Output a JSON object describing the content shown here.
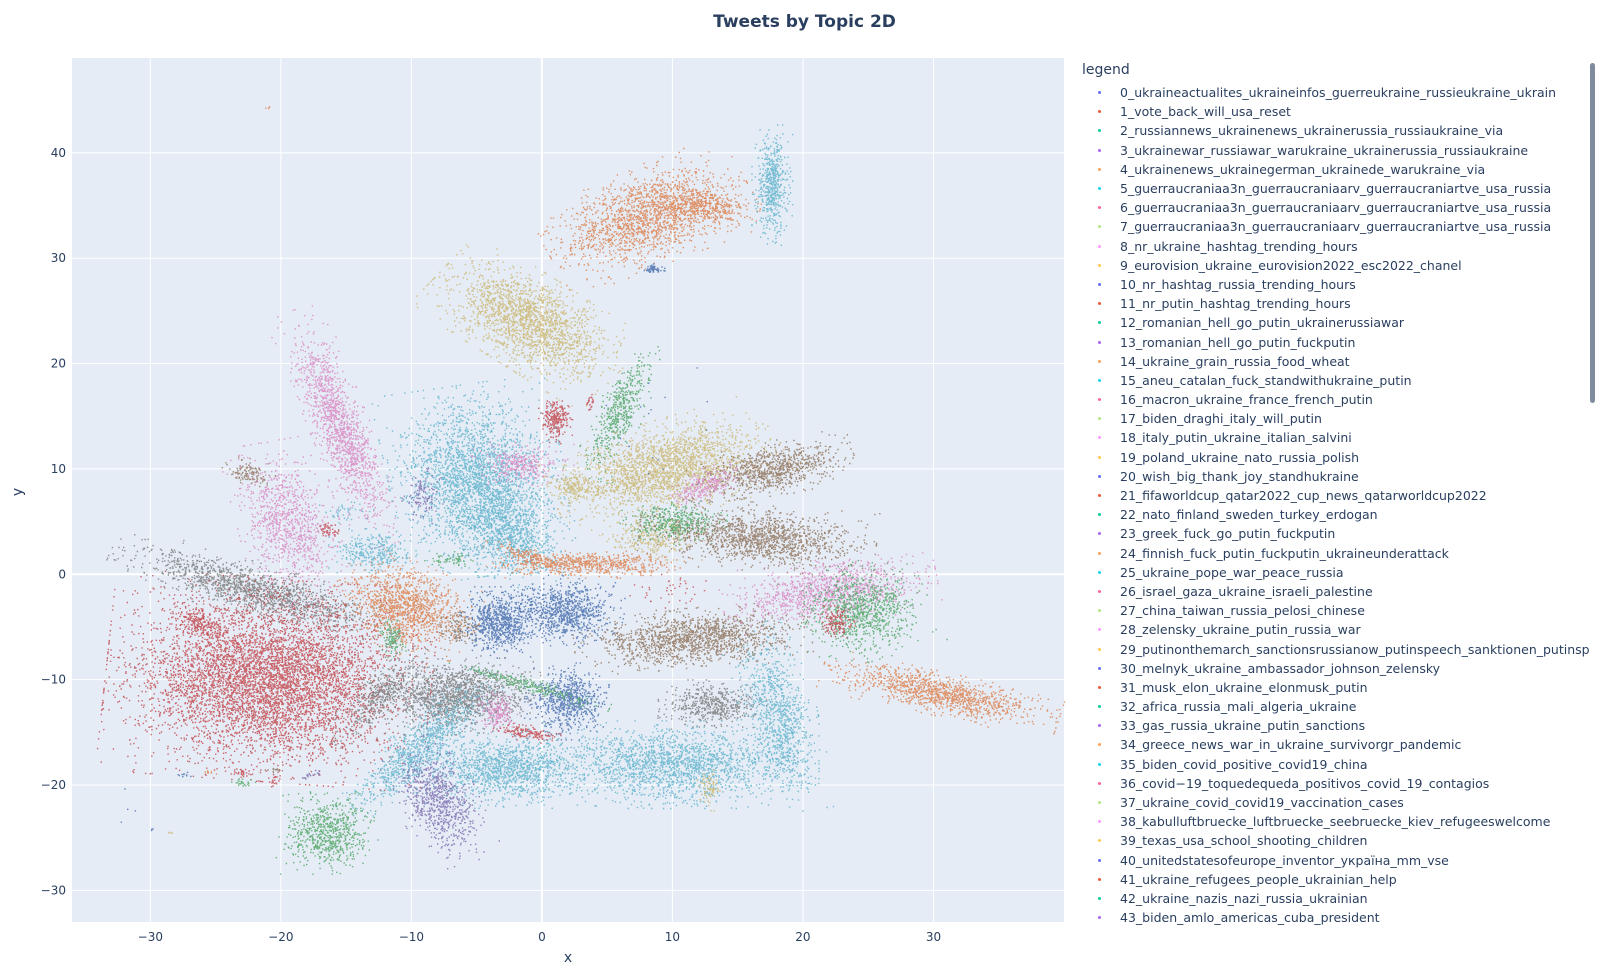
{
  "chart_data": {
    "type": "scatter",
    "title": "Tweets by Topic 2D",
    "xlabel": "x",
    "ylabel": "y",
    "xlim": [
      -36,
      40
    ],
    "ylim": [
      -33,
      49
    ],
    "xticks": [
      -30,
      -20,
      -10,
      0,
      10,
      20,
      30
    ],
    "yticks": [
      -30,
      -20,
      -10,
      0,
      10,
      20,
      30,
      40
    ],
    "xtick_labels": [
      "−30",
      "−20",
      "−10",
      "0",
      "10",
      "20",
      "30"
    ],
    "ytick_labels": [
      "−30",
      "−20",
      "−10",
      "0",
      "10",
      "20",
      "30",
      "40"
    ],
    "grid": true,
    "legend_title": "legend",
    "legend_position": "right",
    "palette": [
      "#636efa",
      "#EF553B",
      "#00cc96",
      "#ab63fa",
      "#FFA15A",
      "#19d3f3",
      "#FF6692",
      "#B6E880",
      "#FF97FF",
      "#FECB52"
    ],
    "series_names": [
      "0_ukraineactualites_ukraineinfos_guerreukraine_russieukraine_ukrain",
      "1_vote_back_will_usa_reset",
      "2_russiannews_ukrainenews_ukrainerussia_russiaukraine_via",
      "3_ukrainewar_russiawar_warukraine_ukrainerussia_russiaukraine",
      "4_ukrainenews_ukrainegerman_ukrainede_warukraine_via",
      "5_guerraucraniaa3n_guerraucraniaarv_guerraucraniartve_usa_russia",
      "6_guerraucraniaa3n_guerraucraniaarv_guerraucraniartve_usa_russia",
      "7_guerraucraniaa3n_guerraucraniaarv_guerraucraniartve_usa_russia",
      "8_nr_ukraine_hashtag_trending_hours",
      "9_eurovision_ukraine_eurovision2022_esc2022_chanel",
      "10_nr_hashtag_russia_trending_hours",
      "11_nr_putin_hashtag_trending_hours",
      "12_romanian_hell_go_putin_ukrainerussiawar",
      "13_romanian_hell_go_putin_fuckputin",
      "14_ukraine_grain_russia_food_wheat",
      "15_aneu_catalan_fuck_standwithukraine_putin",
      "16_macron_ukraine_france_french_putin",
      "17_biden_draghi_italy_will_putin",
      "18_italy_putin_ukraine_italian_salvini",
      "19_poland_ukraine_nato_russia_polish",
      "20_wish_big_thank_joy_standhukraine",
      "21_fifaworldcup_qatar2022_cup_news_qatarworldcup2022",
      "22_nato_finland_sweden_turkey_erdogan",
      "23_greek_fuck_go_putin_fuckputin",
      "24_finnish_fuck_putin_fuckputin_ukraineunderattack",
      "25_ukraine_pope_war_peace_russia",
      "26_israel_gaza_ukraine_israeli_palestine",
      "27_china_taiwan_russia_pelosi_chinese",
      "28_zelensky_ukraine_putin_russia_war",
      "29_putinonthemarch_sanctionsrussianow_putinspeech_sanktionen_putinsp",
      "30_melnyk_ukraine_ambassador_johnson_zelensky",
      "31_musk_elon_ukraine_elonmusk_putin",
      "32_africa_russia_mali_algeria_ukraine",
      "33_gas_russia_ukraine_putin_sanctions",
      "34_greece_news_war_in_ukraine_survivorgr_pandemic",
      "35_biden_covid_positive_covid19_china",
      "36_covid−19_toquedequeda_positivos_covid_19_contagios",
      "37_ukraine_covid_covid19_vaccination_cases",
      "38_kabulluftbruecke_luftbruecke_seebruecke_kiev_refugeeswelcome",
      "39_texas_usa_school_shooting_children",
      "40_unitedstatesofeurope_inventor_україна_mm_vse",
      "41_ukraine_refugees_people_ukrainian_help",
      "42_ukraine_nazis_nazi_russia_ukrainian",
      "43_biden_amlo_americas_cuba_president"
    ],
    "clusters": [
      {
        "color": "#dd8452",
        "cx": 8.0,
        "cy": 34.0,
        "sx": 3.2,
        "sy": 1.8,
        "angle": 25,
        "n": 1700
      },
      {
        "color": "#dd8452",
        "cx": 12.5,
        "cy": 35.0,
        "sx": 1.6,
        "sy": 0.8,
        "angle": -10,
        "n": 400
      },
      {
        "color": "#64b5cd",
        "cx": 17.6,
        "cy": 37.0,
        "sx": 0.6,
        "sy": 2.2,
        "angle": 0,
        "n": 550
      },
      {
        "color": "#4c72b0",
        "cx": 8.4,
        "cy": 29.0,
        "sx": 0.4,
        "sy": 0.2,
        "angle": 0,
        "n": 60
      },
      {
        "color": "#ccb974",
        "cx": -1.0,
        "cy": 24.0,
        "sx": 3.2,
        "sy": 1.7,
        "angle": -38,
        "n": 2000
      },
      {
        "color": "#da8bc3",
        "cx": -15.5,
        "cy": 14.0,
        "sx": 0.9,
        "sy": 4.5,
        "angle": 18,
        "n": 1400
      },
      {
        "color": "#da8bc3",
        "cx": -19.5,
        "cy": 5.0,
        "sx": 1.5,
        "sy": 3.0,
        "angle": 12,
        "n": 950
      },
      {
        "color": "#937860",
        "cx": -22.5,
        "cy": 9.7,
        "sx": 0.8,
        "sy": 0.5,
        "angle": -20,
        "n": 120
      },
      {
        "color": "#55a868",
        "cx": 6.0,
        "cy": 15.5,
        "sx": 0.7,
        "sy": 2.6,
        "angle": -20,
        "n": 500
      },
      {
        "color": "#c44e52",
        "cx": 1.0,
        "cy": 14.8,
        "sx": 0.5,
        "sy": 0.9,
        "angle": 0,
        "n": 250
      },
      {
        "color": "#c44e52",
        "cx": 3.6,
        "cy": 16.3,
        "sx": 0.15,
        "sy": 0.4,
        "angle": 0,
        "n": 25
      },
      {
        "color": "#64b5cd",
        "cx": -5.0,
        "cy": 9.0,
        "sx": 2.6,
        "sy": 3.5,
        "angle": 10,
        "n": 2600
      },
      {
        "color": "#64b5cd",
        "cx": -2.5,
        "cy": 4.0,
        "sx": 1.6,
        "sy": 2.2,
        "angle": 30,
        "n": 900
      },
      {
        "color": "#ccb974",
        "cx": 9.5,
        "cy": 10.0,
        "sx": 3.5,
        "sy": 1.8,
        "angle": 20,
        "n": 2200
      },
      {
        "color": "#ccb974",
        "cx": 2.5,
        "cy": 8.5,
        "sx": 0.8,
        "sy": 0.6,
        "angle": 0,
        "n": 180
      },
      {
        "color": "#ccb974",
        "cx": 8.5,
        "cy": 3.5,
        "sx": 1.5,
        "sy": 0.8,
        "angle": 0,
        "n": 300
      },
      {
        "color": "#937860",
        "cx": 17.5,
        "cy": 10.0,
        "sx": 2.5,
        "sy": 1.0,
        "angle": 15,
        "n": 900
      },
      {
        "color": "#da8bc3",
        "cx": 12.5,
        "cy": 8.5,
        "sx": 1.3,
        "sy": 0.6,
        "angle": 25,
        "n": 250
      },
      {
        "color": "#da8bc3",
        "cx": -1.5,
        "cy": 10.5,
        "sx": 1.5,
        "sy": 0.8,
        "angle": 0,
        "n": 300
      },
      {
        "color": "#55a868",
        "cx": 10.0,
        "cy": 5.0,
        "sx": 1.6,
        "sy": 0.8,
        "angle": 0,
        "n": 450
      },
      {
        "color": "#937860",
        "cx": 16.5,
        "cy": 3.5,
        "sx": 3.5,
        "sy": 1.2,
        "angle": -5,
        "n": 1400
      },
      {
        "color": "#dd8452",
        "cx": 3.5,
        "cy": 1.0,
        "sx": 3.0,
        "sy": 0.5,
        "angle": 0,
        "n": 650
      },
      {
        "color": "#dd8452",
        "cx": -1.5,
        "cy": 2.0,
        "sx": 1.2,
        "sy": 0.3,
        "angle": -25,
        "n": 120
      },
      {
        "color": "#7f7f7f",
        "cx": -22.0,
        "cy": -1.5,
        "sx": 4.5,
        "sy": 1.0,
        "angle": -20,
        "n": 1500
      },
      {
        "color": "#dd8452",
        "cx": -10.5,
        "cy": -3.0,
        "sx": 2.2,
        "sy": 1.6,
        "angle": -30,
        "n": 1300
      },
      {
        "color": "#64b5cd",
        "cx": -13.0,
        "cy": 2.3,
        "sx": 1.3,
        "sy": 0.8,
        "angle": 0,
        "n": 300
      },
      {
        "color": "#c44e52",
        "cx": -21.0,
        "cy": -10.0,
        "sx": 4.8,
        "sy": 3.7,
        "angle": -5,
        "n": 6200
      },
      {
        "color": "#c44e52",
        "cx": -26.0,
        "cy": -4.6,
        "sx": 1.1,
        "sy": 0.5,
        "angle": -30,
        "n": 200
      },
      {
        "color": "#4c72b0",
        "cx": -3.3,
        "cy": -4.5,
        "sx": 1.3,
        "sy": 1.3,
        "angle": 0,
        "n": 800
      },
      {
        "color": "#4c72b0",
        "cx": 1.8,
        "cy": -3.5,
        "sx": 1.7,
        "sy": 1.3,
        "angle": -10,
        "n": 850
      },
      {
        "color": "#937860",
        "cx": 11.5,
        "cy": -6.0,
        "sx": 3.5,
        "sy": 1.1,
        "angle": 5,
        "n": 1500
      },
      {
        "color": "#da8bc3",
        "cx": 22.0,
        "cy": -1.5,
        "sx": 3.2,
        "sy": 1.2,
        "angle": 10,
        "n": 1100
      },
      {
        "color": "#55a868",
        "cx": 24.5,
        "cy": -3.5,
        "sx": 2.0,
        "sy": 1.8,
        "angle": 20,
        "n": 950
      },
      {
        "color": "#c44e52",
        "cx": 22.5,
        "cy": -4.5,
        "sx": 0.6,
        "sy": 0.6,
        "angle": 0,
        "n": 150
      },
      {
        "color": "#dd8452",
        "cx": 30.5,
        "cy": -11.3,
        "sx": 3.6,
        "sy": 0.8,
        "angle": -15,
        "n": 1150
      },
      {
        "color": "#7f7f7f",
        "cx": -6.5,
        "cy": -11.5,
        "sx": 2.5,
        "sy": 1.4,
        "angle": 5,
        "n": 1500
      },
      {
        "color": "#7f7f7f",
        "cx": -12.5,
        "cy": -11.5,
        "sx": 0.8,
        "sy": 2.2,
        "angle": -35,
        "n": 400
      },
      {
        "color": "#4c72b0",
        "cx": 2.0,
        "cy": -12.0,
        "sx": 1.3,
        "sy": 1.4,
        "angle": 0,
        "n": 700
      },
      {
        "color": "#55a868",
        "cx": -1.0,
        "cy": -10.5,
        "sx": 2.5,
        "sy": 0.3,
        "angle": -20,
        "n": 250
      },
      {
        "color": "#7f7f7f",
        "cx": 13.0,
        "cy": -12.3,
        "sx": 1.6,
        "sy": 0.9,
        "angle": 0,
        "n": 500
      },
      {
        "color": "#da8bc3",
        "cx": -3.5,
        "cy": -13.0,
        "sx": 0.6,
        "sy": 0.8,
        "angle": 0,
        "n": 200
      },
      {
        "color": "#c44e52",
        "cx": -1.2,
        "cy": -15.0,
        "sx": 1.0,
        "sy": 0.3,
        "angle": -10,
        "n": 160
      },
      {
        "color": "#64b5cd",
        "cx": -9.5,
        "cy": -16.5,
        "sx": 0.9,
        "sy": 3.5,
        "angle": -40,
        "n": 900
      },
      {
        "color": "#64b5cd",
        "cx": -3.0,
        "cy": -18.5,
        "sx": 2.8,
        "sy": 1.4,
        "angle": 0,
        "n": 1300
      },
      {
        "color": "#64b5cd",
        "cx": 10.0,
        "cy": -18.0,
        "sx": 4.3,
        "sy": 1.6,
        "angle": 0,
        "n": 1900
      },
      {
        "color": "#64b5cd",
        "cx": 18.0,
        "cy": -13.5,
        "sx": 1.2,
        "sy": 3.5,
        "angle": 10,
        "n": 900
      },
      {
        "color": "#ccb974",
        "cx": 12.8,
        "cy": -20.3,
        "sx": 0.4,
        "sy": 0.8,
        "angle": 0,
        "n": 80
      },
      {
        "color": "#8172b2",
        "cx": -8.0,
        "cy": -21.5,
        "sx": 1.2,
        "sy": 2.4,
        "angle": 20,
        "n": 800
      },
      {
        "color": "#55a868",
        "cx": -16.5,
        "cy": -24.5,
        "sx": 1.5,
        "sy": 1.5,
        "angle": 0,
        "n": 700
      },
      {
        "color": "#55a868",
        "cx": -11.5,
        "cy": -6.0,
        "sx": 0.4,
        "sy": 0.8,
        "angle": 0,
        "n": 120
      },
      {
        "color": "#8172b2",
        "cx": -9.2,
        "cy": 7.5,
        "sx": 0.6,
        "sy": 1.0,
        "angle": 0,
        "n": 120
      },
      {
        "color": "#937860",
        "cx": -6.5,
        "cy": -5.0,
        "sx": 0.8,
        "sy": 0.8,
        "angle": 0,
        "n": 120
      },
      {
        "color": "#55a868",
        "cx": -7.0,
        "cy": 1.5,
        "sx": 0.8,
        "sy": 0.3,
        "angle": 0,
        "n": 60
      },
      {
        "color": "#c44e52",
        "cx": -16.5,
        "cy": 4.3,
        "sx": 0.4,
        "sy": 0.3,
        "angle": -30,
        "n": 50
      },
      {
        "color": "#dd8452",
        "cx": -21.0,
        "cy": 44.3,
        "sx": 0.08,
        "sy": 0.08,
        "angle": 0,
        "n": 4
      },
      {
        "color": "#c44e52",
        "cx": -23.0,
        "cy": -18.8,
        "sx": 0.4,
        "sy": 0.15,
        "angle": 0,
        "n": 25
      },
      {
        "color": "#55a868",
        "cx": -23.0,
        "cy": -19.7,
        "sx": 0.4,
        "sy": 0.15,
        "angle": 0,
        "n": 25
      },
      {
        "color": "#c44e52",
        "cx": -20.5,
        "cy": -19.5,
        "sx": 0.2,
        "sy": 0.3,
        "angle": 0,
        "n": 20
      },
      {
        "color": "#937860",
        "cx": -20.5,
        "cy": -18.5,
        "sx": 0.4,
        "sy": 0.1,
        "angle": 0,
        "n": 15
      },
      {
        "color": "#8172b2",
        "cx": -17.7,
        "cy": -19.0,
        "sx": 0.4,
        "sy": 0.15,
        "angle": 20,
        "n": 20
      },
      {
        "color": "#4c72b0",
        "cx": -27.5,
        "cy": -19.0,
        "sx": 0.3,
        "sy": 0.15,
        "angle": 0,
        "n": 10
      },
      {
        "color": "#dd8452",
        "cx": -25.5,
        "cy": -18.8,
        "sx": 0.2,
        "sy": 0.1,
        "angle": 0,
        "n": 8
      },
      {
        "color": "#ccb974",
        "cx": -28.5,
        "cy": -24.5,
        "sx": 0.1,
        "sy": 0.1,
        "angle": 0,
        "n": 5
      },
      {
        "color": "#4c72b0",
        "cx": -30.0,
        "cy": -24.2,
        "sx": 0.1,
        "sy": 0.1,
        "angle": 0,
        "n": 3
      },
      {
        "color": "#4c72b0",
        "cx": -31.5,
        "cy": -22.5,
        "sx": 0.4,
        "sy": 1.2,
        "angle": 0,
        "n": 4
      },
      {
        "color": "#c44e52",
        "cx": 10.0,
        "cy": -1.5,
        "sx": 1.3,
        "sy": 0.7,
        "angle": 0,
        "n": 40
      },
      {
        "color": "#4c72b0",
        "cx": 9.5,
        "cy": 14.5,
        "sx": 3.0,
        "sy": 3.0,
        "angle": 0,
        "n": 15
      },
      {
        "color": "#64b5cd",
        "cx": -15.0,
        "cy": 6.0,
        "sx": 0.8,
        "sy": 0.5,
        "angle": 0,
        "n": 40
      }
    ]
  }
}
